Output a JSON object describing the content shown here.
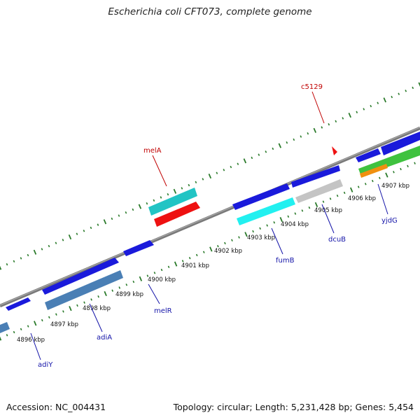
{
  "title": "Escherichia coli CFT073, complete genome",
  "footer": {
    "accession": "Accession: NC_004431",
    "summary": "Topology: circular; Length: 5,231,428 bp; Genes: 5,454"
  },
  "colors": {
    "backbone": "#7a7a7a",
    "tick": "#2a7a2a",
    "label_blue": "#1414a8",
    "label_red": "#c00000"
  },
  "ticks": [
    "4896 kbp",
    "4897 kbp",
    "4898 kbp",
    "4899 kbp",
    "4900 kbp",
    "4901 kbp",
    "4902 kbp",
    "4903 kbp",
    "4904 kbp",
    "4905 kbp",
    "4906 kbp",
    "4907 kbp"
  ],
  "genes": [
    {
      "name": "adiY"
    },
    {
      "name": "adiA"
    },
    {
      "name": "melR"
    },
    {
      "name": "fumB"
    },
    {
      "name": "dcuB"
    },
    {
      "name": "yjdG"
    },
    {
      "name": "melA"
    },
    {
      "name": "c5129"
    }
  ]
}
